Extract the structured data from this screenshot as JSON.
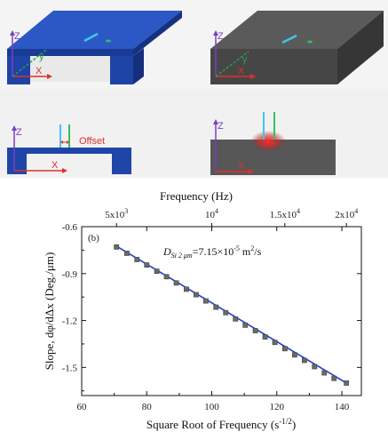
{
  "schematics": {
    "axis_z": "Z",
    "axis_x": "X",
    "axis_y": "y",
    "offset_label": "Offset"
  },
  "colors": {
    "membrane_blue": "#1f45a8",
    "bulk_gray": "#4e4e4e",
    "axis_purple": "#7a3fbf",
    "axis_red": "#e0302b",
    "axis_green": "#2e9b4b",
    "fit_line": "#1d3fd6",
    "data_marker": "#6a6a6a"
  },
  "chart_data": {
    "type": "scatter",
    "panel_label": "(b)",
    "annotation": {
      "prefix": "D",
      "subscript": "Si 2 μm",
      "value": "=7.15×10",
      "exponent": "-5",
      "unit": " m",
      "unit_exp": "2",
      "unit_end": "/s"
    },
    "xlabel": "Square Root of Frequency (s",
    "xlabel_exp": "-1/2",
    "xlabel_end": ")",
    "ylabel": "Slope, dφ/dΔx (Deg./μm)",
    "top_xlabel": "Frequency (Hz)",
    "xlim": [
      60,
      146
    ],
    "ylim": [
      -1.68,
      -0.6
    ],
    "xticks": [
      60,
      80,
      100,
      120,
      140
    ],
    "yticks": [
      -0.6,
      -0.9,
      -1.2,
      -1.5
    ],
    "ytick_labels": [
      "-0.6",
      "-0.9",
      "-1.2",
      "-1.5"
    ],
    "top_ticks": [
      {
        "freq": 5000,
        "label": "5x10",
        "sup": "3"
      },
      {
        "freq": 10000,
        "label": "10",
        "sup": "4"
      },
      {
        "freq": 15000,
        "label": "1.5x10",
        "sup": "4"
      },
      {
        "freq": 20000,
        "label": "2x10",
        "sup": "4"
      }
    ],
    "series": [
      {
        "marker": "square",
        "x": [
          70.7,
          73.9,
          77.0,
          80.0,
          83.1,
          86.1,
          89.1,
          92.2,
          95.2,
          98.2,
          101.3,
          104.3,
          107.3,
          110.3,
          113.4,
          116.4,
          119.4,
          122.5,
          125.5,
          128.5,
          131.6,
          134.6,
          137.6,
          141.4
        ],
        "y": [
          -0.73,
          -0.77,
          -0.81,
          -0.845,
          -0.885,
          -0.92,
          -0.96,
          -1.0,
          -1.035,
          -1.075,
          -1.115,
          -1.15,
          -1.19,
          -1.23,
          -1.265,
          -1.305,
          -1.34,
          -1.38,
          -1.42,
          -1.455,
          -1.495,
          -1.535,
          -1.57,
          -1.6
        ]
      }
    ],
    "fit": {
      "x": [
        70.7,
        141.4
      ],
      "y": [
        -0.725,
        -1.6
      ]
    }
  }
}
